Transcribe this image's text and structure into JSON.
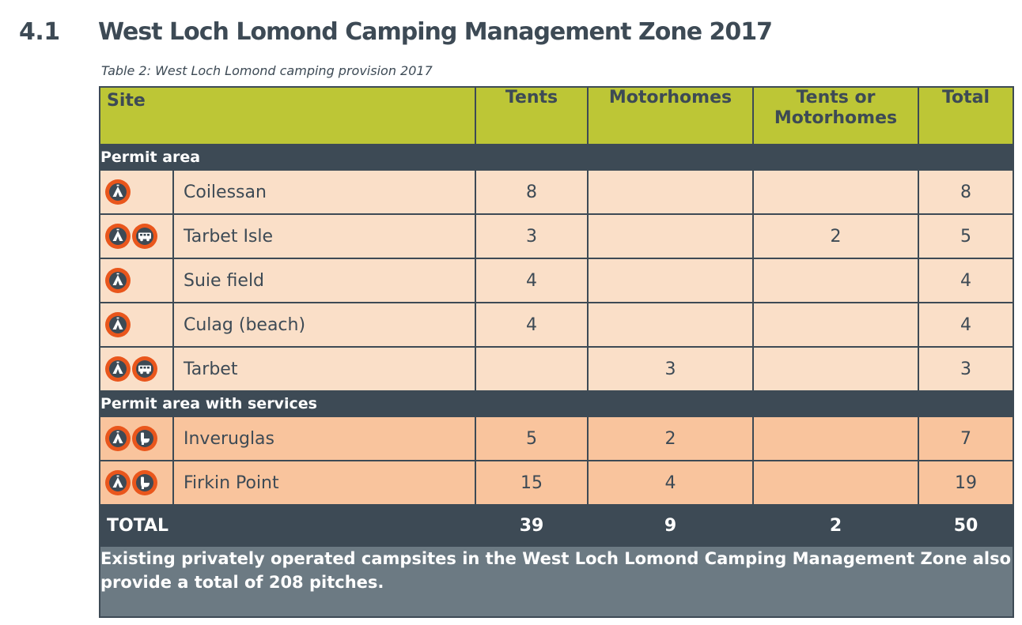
{
  "heading": {
    "number": "4.1",
    "title": "West Loch Lomond Camping Management Zone 2017"
  },
  "caption": "Table 2:  West Loch Lomond camping provision  2017",
  "table": {
    "headers": {
      "site": "Site",
      "tents": "Tents",
      "motorhomes": "Motorhomes",
      "tents_or_motorhomes_line1": "Tents or",
      "tents_or_motorhomes_line2": "Motorhomes",
      "total": "Total"
    },
    "sections": [
      {
        "label": "Permit area",
        "rows": [
          {
            "icons": [
              "tent-icon"
            ],
            "name": "Coilessan",
            "tents": "8",
            "motorhomes": "",
            "either": "",
            "total": "8"
          },
          {
            "icons": [
              "tent-icon",
              "motorhome-icon"
            ],
            "name": "Tarbet Isle",
            "tents": "3",
            "motorhomes": "",
            "either": "2",
            "total": "5"
          },
          {
            "icons": [
              "tent-icon"
            ],
            "name": "Suie field",
            "tents": "4",
            "motorhomes": "",
            "either": "",
            "total": "4"
          },
          {
            "icons": [
              "tent-icon"
            ],
            "name": "Culag (beach)",
            "tents": "4",
            "motorhomes": "",
            "either": "",
            "total": "4"
          },
          {
            "icons": [
              "tent-icon",
              "motorhome-icon"
            ],
            "name": "Tarbet",
            "tents": "",
            "motorhomes": "3",
            "either": "",
            "total": "3"
          }
        ]
      },
      {
        "label": "Permit area with services",
        "rows": [
          {
            "icons": [
              "tent-icon",
              "toilet-icon"
            ],
            "name": "Inveruglas",
            "tents": "5",
            "motorhomes": "2",
            "either": "",
            "total": "7"
          },
          {
            "icons": [
              "tent-icon",
              "toilet-icon"
            ],
            "name": "Firkin Point",
            "tents": "15",
            "motorhomes": "4",
            "either": "",
            "total": "19"
          }
        ]
      }
    ],
    "total": {
      "label": "TOTAL",
      "tents": "39",
      "motorhomes": "9",
      "either": "2",
      "total": "50"
    },
    "note": "Existing privately operated campsites in the West Loch Lomond Camping Management Zone also provide a total of 208 pitches."
  },
  "colors": {
    "dark": "#3d4a55",
    "lime": "#bdc636",
    "orange": "#e9561c",
    "light_peach": "#fadfc8",
    "peach": "#f9c49d",
    "slate": "#6c7a83"
  }
}
